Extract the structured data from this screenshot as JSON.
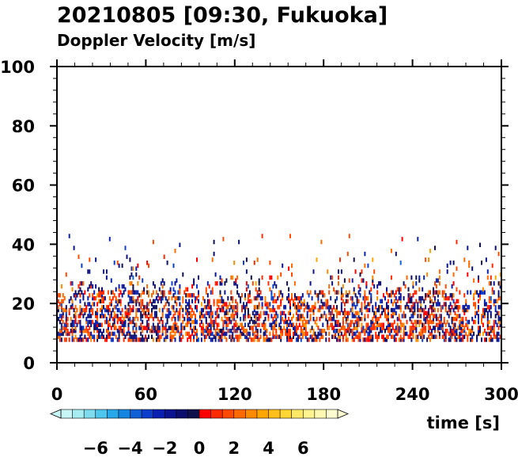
{
  "chart_data": {
    "type": "heatmap",
    "title": "20210805 [09:30, Fukuoka]",
    "subtitle": "Doppler Velocity [m/s]",
    "xlabel": "time [s]",
    "ylabel": "",
    "xlim": [
      0,
      300
    ],
    "ylim": [
      0,
      100
    ],
    "x_ticks": [
      "0",
      "60",
      "120",
      "180",
      "240",
      "300"
    ],
    "y_ticks": [
      "0",
      "20",
      "40",
      "60",
      "80",
      "100"
    ],
    "grid": false,
    "data_height_range": [
      8,
      43
    ],
    "colorbar": {
      "ticks": [
        "−6",
        "−4",
        "−2",
        "0",
        "2",
        "4",
        "6"
      ],
      "tick_values": [
        -6,
        -4,
        -2,
        0,
        2,
        4,
        6
      ],
      "range": [
        -8,
        8
      ],
      "colors": [
        "#c8f5f5",
        "#a6ecf0",
        "#7fdcee",
        "#4fc6ee",
        "#26a8ea",
        "#1585df",
        "#1160d6",
        "#0c3ecb",
        "#0a20b0",
        "#0b1390",
        "#0c0d6c",
        "#10104a",
        "#ff0000",
        "#ff2a00",
        "#ff4a00",
        "#ff6a00",
        "#ff8a00",
        "#ffa500",
        "#ffbf1a",
        "#ffd633",
        "#ffe866",
        "#fff38f",
        "#fff8b3",
        "#fffbd0"
      ]
    }
  }
}
